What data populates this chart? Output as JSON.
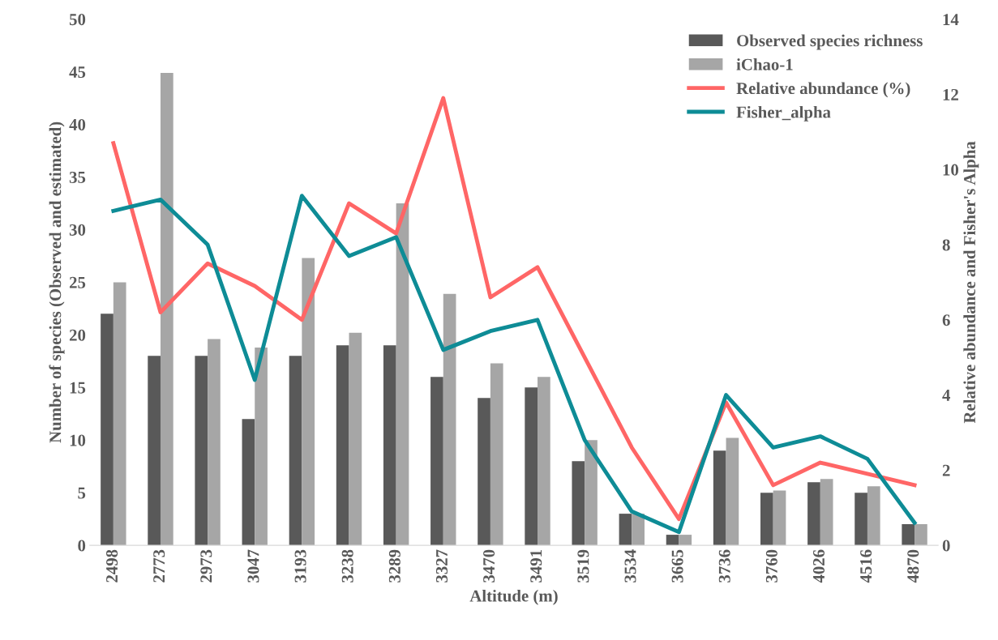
{
  "chart_data": {
    "type": "bar",
    "xlabel": "Altitude (m)",
    "ylabel": "Number of species (Observed and estimated)",
    "y2label": "Relative abundance and Fisher's Alpha",
    "categories": [
      "2498",
      "2773",
      "2973",
      "3047",
      "3193",
      "3238",
      "3289",
      "3327",
      "3470",
      "3491",
      "3519",
      "3534",
      "3665",
      "3736",
      "3760",
      "4026",
      "4516",
      "4870"
    ],
    "series": [
      {
        "name": "Observed species richness",
        "color": "#595959",
        "values": [
          22,
          18,
          18,
          12,
          18,
          19,
          19,
          16,
          14,
          15,
          8,
          3,
          1,
          9,
          5,
          6,
          5,
          2
        ]
      },
      {
        "name": "iChao-1",
        "color": "#a6a6a6",
        "values": [
          25,
          44.9,
          19.6,
          18.8,
          27.3,
          20.2,
          32.5,
          23.9,
          17.3,
          16,
          10,
          3,
          1,
          10.2,
          5.2,
          6.3,
          5.6,
          2
        ]
      },
      {
        "name": "Relative abundance (%)",
        "type": "line",
        "axis": "y2",
        "color": "#ff6666",
        "values": [
          10.7,
          6.2,
          7.5,
          6.9,
          6.0,
          9.1,
          8.3,
          11.9,
          6.6,
          7.4,
          5.0,
          2.6,
          0.7,
          3.8,
          1.6,
          2.2,
          1.9,
          1.6
        ]
      },
      {
        "name": "Fisher_alpha",
        "type": "line",
        "axis": "y2",
        "color": "#0e8c96",
        "values": [
          8.9,
          9.2,
          8.0,
          4.4,
          9.3,
          7.7,
          8.2,
          5.2,
          5.7,
          6.0,
          2.8,
          0.9,
          0.35,
          4.0,
          2.6,
          2.9,
          2.3,
          0.6
        ]
      }
    ],
    "ylim": [
      0,
      50
    ],
    "yticks": [
      0,
      5,
      10,
      15,
      20,
      25,
      30,
      35,
      40,
      45,
      50
    ],
    "y2lim": [
      0,
      14
    ],
    "y2ticks": [
      0,
      2,
      4,
      6,
      8,
      10,
      12,
      14
    ],
    "legend": "top right",
    "grid": false
  }
}
